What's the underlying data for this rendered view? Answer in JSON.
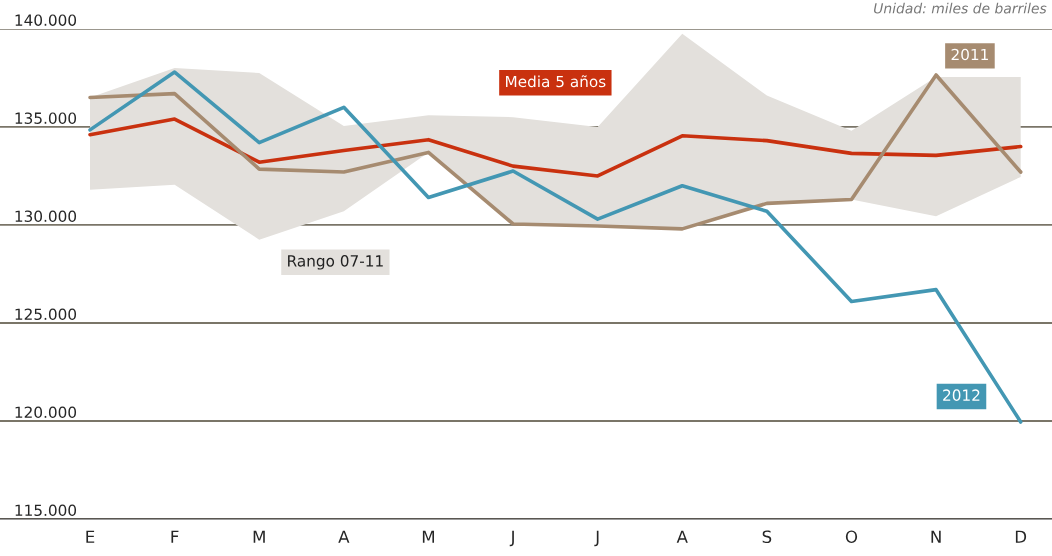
{
  "chart_data": {
    "type": "line",
    "categories": [
      "E",
      "F",
      "M",
      "A",
      "M",
      "J",
      "J",
      "A",
      "S",
      "O",
      "N",
      "D"
    ],
    "series": [
      {
        "name": "Media 5 años",
        "color": "#c9310f",
        "values": [
          134600,
          135400,
          133200,
          133800,
          134350,
          133000,
          132500,
          134550,
          134300,
          133650,
          133550,
          134000
        ],
        "lower": [
          131800,
          132050,
          129250,
          130700,
          133700,
          130050,
          129950,
          129800,
          131100,
          131300,
          130450,
          132450
        ],
        "upper": [
          136500,
          138000,
          137750,
          135050,
          135600,
          135500,
          135000,
          139750,
          136600,
          134800,
          137550,
          137550
        ]
      },
      {
        "name": "2011",
        "color": "#a68b70",
        "values": [
          136500,
          136700,
          132850,
          132700,
          133700,
          130050,
          129950,
          129800,
          131100,
          131300,
          137650,
          132700
        ]
      },
      {
        "name": "2012",
        "color": "#4397b3",
        "values": [
          134850,
          137800,
          134200,
          136000,
          131400,
          132750,
          130300,
          132000,
          130700,
          126100,
          126700,
          119950
        ]
      }
    ],
    "ylim": [
      115000,
      140000
    ],
    "yticks": [
      {
        "value": 115000,
        "label": "115.000"
      },
      {
        "value": 120000,
        "label": "120.000"
      },
      {
        "value": 125000,
        "label": "125.000"
      },
      {
        "value": 130000,
        "label": "130.000"
      },
      {
        "value": 135000,
        "label": "135.000"
      },
      {
        "value": 140000,
        "label": "140.000"
      }
    ],
    "grid": "y",
    "legend": false,
    "annotations": [
      "Unidad: miles de barriles",
      "Rango 07-11"
    ]
  }
}
